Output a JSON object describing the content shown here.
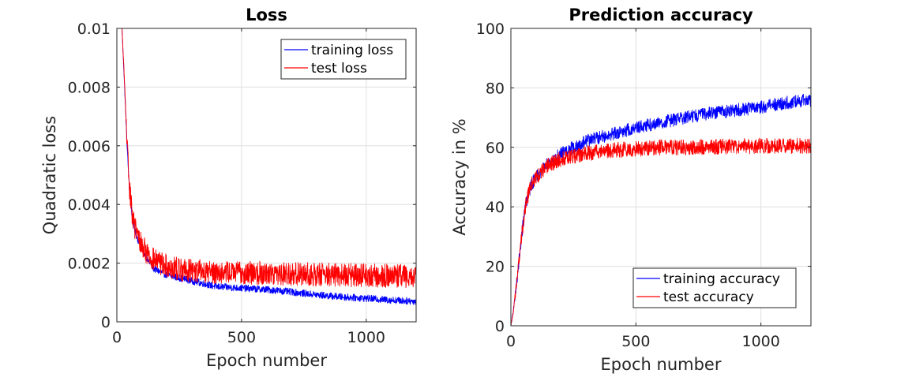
{
  "chart_data": [
    {
      "type": "line",
      "title": "Loss",
      "xlabel": "Epoch number",
      "ylabel": "Quadratic loss",
      "xlim": [
        0,
        1200
      ],
      "ylim": [
        0,
        0.01
      ],
      "xticks": [
        0,
        500,
        1000
      ],
      "xtick_labels": [
        "0",
        "500",
        "1000"
      ],
      "yticks": [
        0,
        0.002,
        0.004,
        0.006,
        0.008,
        0.01
      ],
      "ytick_labels": [
        "0",
        "0.002",
        "0.004",
        "0.006",
        "0.008",
        "0.01"
      ],
      "grid": true,
      "legend_position": "top-right",
      "series": [
        {
          "name": "training loss",
          "color": "#0000ff",
          "x": [
            20,
            30,
            40,
            50,
            60,
            70,
            80,
            100,
            125,
            150,
            200,
            250,
            300,
            400,
            500,
            600,
            700,
            800,
            900,
            1000,
            1100,
            1200
          ],
          "y": [
            0.0101,
            0.0082,
            0.0062,
            0.0045,
            0.0037,
            0.0032,
            0.0029,
            0.0025,
            0.0021,
            0.0018,
            0.0016,
            0.0015,
            0.0014,
            0.0012,
            0.00115,
            0.0011,
            0.00102,
            0.00092,
            0.00085,
            0.0008,
            0.00074,
            0.0007
          ],
          "noise_amplitude": 0.00012
        },
        {
          "name": "test loss",
          "color": "#ff0000",
          "x": [
            20,
            30,
            40,
            50,
            60,
            70,
            80,
            100,
            125,
            150,
            200,
            250,
            300,
            400,
            500,
            600,
            700,
            800,
            900,
            1000,
            1100,
            1200
          ],
          "y": [
            0.0101,
            0.0083,
            0.0063,
            0.0046,
            0.0038,
            0.0033,
            0.003,
            0.0026,
            0.0023,
            0.0021,
            0.0019,
            0.0018,
            0.00175,
            0.0017,
            0.00168,
            0.00166,
            0.00164,
            0.00162,
            0.0016,
            0.00158,
            0.00157,
            0.00156
          ],
          "noise_amplitude": 0.0004
        }
      ]
    },
    {
      "type": "line",
      "title": "Prediction accuracy",
      "xlabel": "Epoch number",
      "ylabel": "Accuracy in %",
      "xlim": [
        0,
        1200
      ],
      "ylim": [
        0,
        100
      ],
      "xticks": [
        0,
        500,
        1000
      ],
      "xtick_labels": [
        "0",
        "500",
        "1000"
      ],
      "yticks": [
        0,
        20,
        40,
        60,
        80,
        100
      ],
      "ytick_labels": [
        "0",
        "20",
        "40",
        "60",
        "80",
        "100"
      ],
      "grid": true,
      "legend_position": "bottom-right",
      "series": [
        {
          "name": "training accuracy",
          "color": "#0000ff",
          "x": [
            0,
            10,
            20,
            30,
            40,
            50,
            60,
            80,
            100,
            150,
            200,
            300,
            400,
            500,
            600,
            700,
            800,
            900,
            1000,
            1100,
            1200
          ],
          "y": [
            0,
            5,
            12,
            20,
            28,
            35,
            41,
            47,
            50,
            55,
            58,
            62,
            64.5,
            66.5,
            68.5,
            70,
            71.5,
            72.5,
            73.5,
            75,
            76
          ],
          "noise_amplitude": 2.2
        },
        {
          "name": "test accuracy",
          "color": "#ff0000",
          "x": [
            0,
            10,
            20,
            30,
            40,
            50,
            60,
            80,
            100,
            150,
            200,
            300,
            400,
            500,
            600,
            700,
            800,
            900,
            1000,
            1100,
            1200
          ],
          "y": [
            0,
            5,
            12,
            20,
            28,
            35,
            41,
            47,
            50,
            54,
            56,
            58,
            59,
            59.5,
            60,
            60,
            60.2,
            60.3,
            60.5,
            60.5,
            60.5
          ],
          "noise_amplitude": 2.6
        }
      ]
    }
  ]
}
